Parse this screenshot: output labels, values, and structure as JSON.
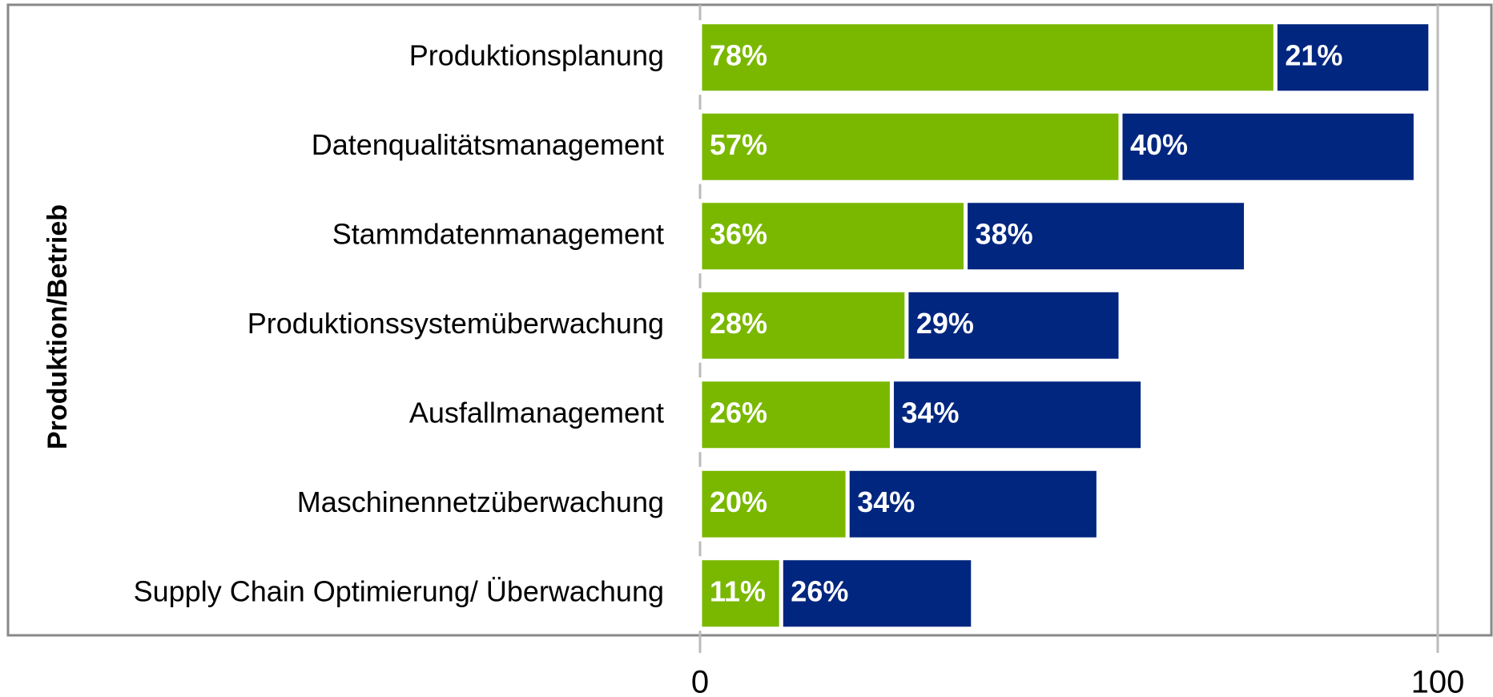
{
  "chart_data": {
    "type": "stacked_barh",
    "ylabel": "Produktion/Betrieb",
    "categories": [
      "Produktionsplanung",
      "Datenqualitätsmanagement",
      "Stammdatenmanagement",
      "Produktionssystemüberwachung",
      "Ausfallmanagement",
      "Maschinennetzüberwachung",
      "Supply Chain Optimierung/ Überwachung"
    ],
    "series": [
      {
        "color": "#7ab800",
        "values": [
          78,
          57,
          36,
          28,
          26,
          20,
          11
        ],
        "value_labels": [
          "78%",
          "57%",
          "36%",
          "28%",
          "26%",
          "20%",
          "11%"
        ]
      },
      {
        "color": "#00267f",
        "values": [
          21,
          40,
          38,
          29,
          34,
          34,
          26
        ],
        "value_labels": [
          "21%",
          "40%",
          "38%",
          "29%",
          "34%",
          "34%",
          "26%"
        ]
      }
    ],
    "xlim": [
      0,
      100
    ],
    "xticks": [
      0,
      100
    ],
    "grid": true
  }
}
